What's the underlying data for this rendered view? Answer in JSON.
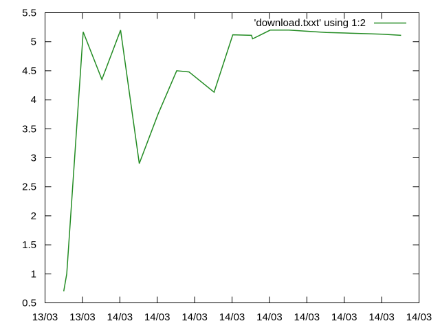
{
  "chart_data": {
    "type": "line",
    "title": "",
    "xlabel": "",
    "ylabel": "",
    "ylim": [
      0.5,
      5.5
    ],
    "yticks": [
      0.5,
      1,
      1.5,
      2,
      2.5,
      3,
      3.5,
      4,
      4.5,
      5,
      5.5
    ],
    "ytick_labels": [
      "0.5",
      "1",
      "1.5",
      "2",
      "2.5",
      "3",
      "3.5",
      "4",
      "4.5",
      "5",
      "5.5"
    ],
    "xlim": [
      0,
      10
    ],
    "xticks": [
      0,
      1,
      2,
      3,
      4,
      5,
      6,
      7,
      8,
      9,
      10
    ],
    "xtick_labels": [
      "13/03",
      "13/03",
      "14/03",
      "14/03",
      "14/03",
      "14/03",
      "14/03",
      "14/03",
      "14/03",
      "14/03",
      "14/03"
    ],
    "grid": false,
    "legend_position": "top-right",
    "series": [
      {
        "name": "'download.txxt' using 1:2",
        "color": "#228b22",
        "x": [
          0.5,
          0.58,
          1.02,
          1.52,
          2.02,
          2.52,
          3.02,
          3.52,
          3.85,
          4.52,
          5.02,
          5.52,
          5.55,
          6.02,
          6.52,
          7.02,
          7.52,
          8.02,
          8.52,
          9.02,
          9.52
        ],
        "y": [
          0.7,
          1.0,
          5.17,
          4.35,
          5.2,
          2.9,
          3.75,
          4.5,
          4.48,
          4.13,
          5.12,
          5.11,
          5.05,
          5.2,
          5.2,
          5.18,
          5.16,
          5.15,
          5.14,
          5.13,
          5.11
        ]
      }
    ]
  }
}
